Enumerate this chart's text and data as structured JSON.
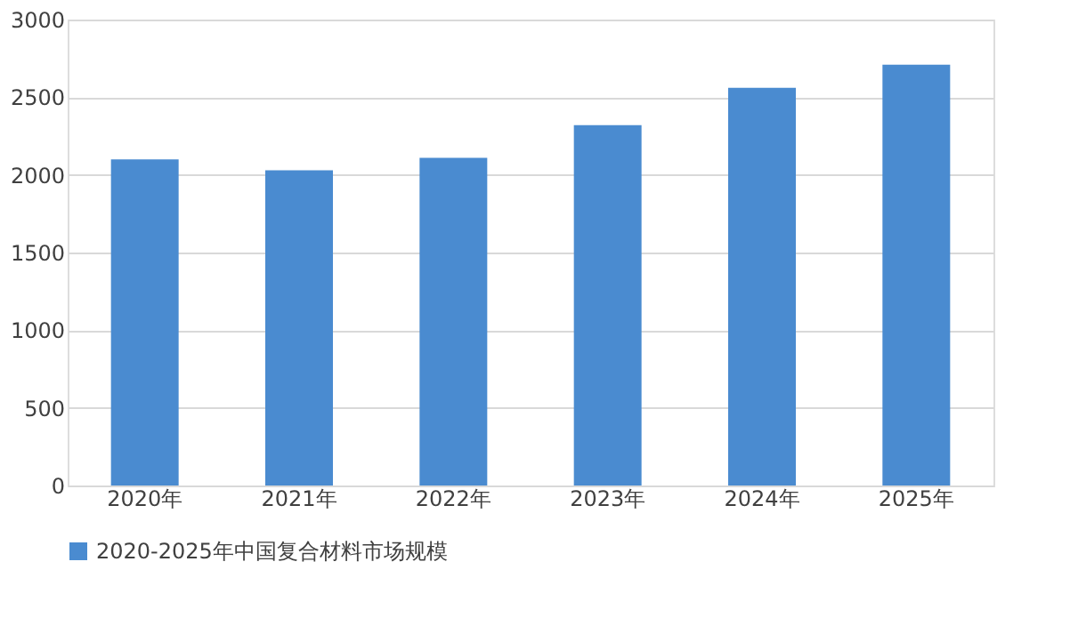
{
  "chart_data": {
    "type": "bar",
    "categories": [
      "2020年",
      "2021年",
      "2022年",
      "2023年",
      "2024年",
      "2025年"
    ],
    "series": [
      {
        "name": "2020-2025年中国复合材料市场规模",
        "color": "#4a8bd0",
        "values": [
          2100,
          2030,
          2110,
          2320,
          2560,
          2710
        ]
      }
    ],
    "ylim": [
      0,
      3000
    ],
    "yticks": [
      0,
      500,
      1000,
      1500,
      2000,
      2500,
      3000
    ],
    "grid": "y",
    "legend": "bottom"
  }
}
